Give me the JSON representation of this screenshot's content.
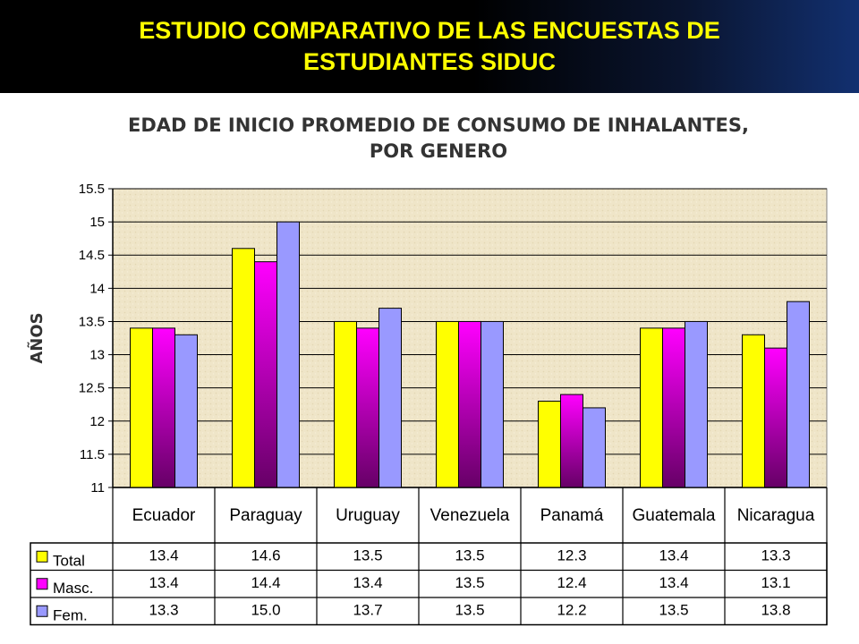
{
  "header": {
    "title": "ESTUDIO COMPARATIVO DE LAS ENCUESTAS DE ESTUDIANTES SIDUC"
  },
  "chart_data": {
    "type": "bar",
    "title_line1": "EDAD DE INICIO PROMEDIO DE CONSUMO DE INHALANTES,",
    "title_line2": "POR GENERO",
    "ylabel": "AÑOS",
    "xlabel": "",
    "ylim": [
      11,
      15.5
    ],
    "ytick_step": 0.5,
    "yticks": [
      "11",
      "11.5",
      "12",
      "12.5",
      "13",
      "13.5",
      "14",
      "14.5",
      "15",
      "15.5"
    ],
    "grid": true,
    "categories": [
      "Ecuador",
      "Paraguay",
      "Uruguay",
      "Venezuela",
      "Panamá",
      "Guatemala",
      "Nicaragua"
    ],
    "series": [
      {
        "name": "Total",
        "color": "#ffff00",
        "values": [
          13.4,
          14.6,
          13.5,
          13.5,
          12.3,
          13.4,
          13.3
        ],
        "labels": [
          "13.4",
          "14.6",
          "13.5",
          "13.5",
          "12.3",
          "13.4",
          "13.3"
        ]
      },
      {
        "name": "Masc.",
        "color": "#ff00ff",
        "values": [
          13.4,
          14.4,
          13.4,
          13.5,
          12.4,
          13.4,
          13.1
        ],
        "labels": [
          "13.4",
          "14.4",
          "13.4",
          "13.5",
          "12.4",
          "13.4",
          "13.1"
        ]
      },
      {
        "name": "Fem.",
        "color": "#9999ff",
        "values": [
          13.3,
          15.0,
          13.7,
          13.5,
          12.2,
          13.5,
          13.8
        ],
        "labels": [
          "13.3",
          "15.0",
          "13.7",
          "13.5",
          "12.2",
          "13.5",
          "13.8"
        ]
      }
    ],
    "data_table": true
  }
}
